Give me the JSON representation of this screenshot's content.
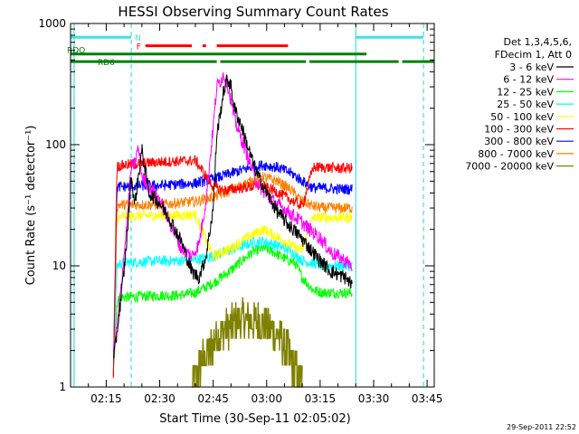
{
  "chart_data": {
    "type": "line",
    "title": "HESSI Observing Summary Count Rates",
    "xlabel": "Start Time (30-Sep-11 02:05:02)",
    "ylabel": "Count Rate (s⁻¹ detector⁻¹)",
    "x_scale": "time_minutes",
    "y_scale": "log",
    "xlim": [
      "02:05",
      "03:47"
    ],
    "ylim": [
      1,
      1000
    ],
    "x_ticks": [
      "02:15",
      "02:30",
      "02:45",
      "03:00",
      "03:15",
      "03:30",
      "03:45"
    ],
    "y_ticks": [
      "1",
      "10",
      "100",
      "1000"
    ],
    "grid": false,
    "legend_placement": "right",
    "legend_header": [
      "Det 1,3,4,5,6,",
      "FDecim 1, Att 0"
    ],
    "timestamp": "29-Sep-2011 22:52",
    "series": [
      {
        "name": "3 - 6 keV",
        "color": "#000000",
        "x": [
          "02:17",
          "02:18",
          "02:20",
          "02:21",
          "02:22",
          "02:23",
          "02:25",
          "02:27",
          "02:30",
          "02:33",
          "02:36",
          "02:39",
          "02:41",
          "02:43",
          "02:45",
          "02:46",
          "02:48",
          "02:49",
          "02:50",
          "02:51",
          "02:53",
          "02:55",
          "02:57",
          "03:00",
          "03:03",
          "03:06",
          "03:09",
          "03:12",
          "03:15",
          "03:18",
          "03:22",
          "03:24"
        ],
        "y": [
          1.6,
          2.8,
          9,
          20,
          55,
          32,
          90,
          40,
          33,
          24,
          16,
          9,
          8,
          12,
          30,
          120,
          280,
          350,
          300,
          200,
          140,
          90,
          60,
          40,
          28,
          22,
          18,
          14,
          11,
          9,
          8,
          7
        ]
      },
      {
        "name": "6 - 12 keV",
        "color": "#ff00ff",
        "x": [
          "02:17",
          "02:18",
          "02:20",
          "02:21",
          "02:22",
          "02:23",
          "02:24",
          "02:25",
          "02:27",
          "02:30",
          "02:33",
          "02:36",
          "02:39",
          "02:41",
          "02:43",
          "02:45",
          "02:46",
          "02:48",
          "02:49",
          "02:50",
          "02:51",
          "02:53",
          "02:55",
          "02:57",
          "03:00",
          "03:03",
          "03:06",
          "03:09",
          "03:12",
          "03:15",
          "03:18",
          "03:22",
          "03:24"
        ],
        "y": [
          2,
          3,
          12,
          26,
          65,
          70,
          95,
          55,
          45,
          35,
          22,
          14,
          12,
          15,
          35,
          140,
          300,
          380,
          320,
          230,
          160,
          110,
          75,
          50,
          38,
          32,
          28,
          24,
          20,
          17,
          13,
          11,
          10
        ]
      },
      {
        "name": "12 - 25 keV",
        "color": "#00ff00",
        "x": [
          "02:17",
          "02:18",
          "02:19",
          "02:20",
          "02:25",
          "02:30",
          "02:35",
          "02:40",
          "02:45",
          "02:50",
          "02:53",
          "02:56",
          "02:59",
          "03:02",
          "03:05",
          "03:08",
          "03:10",
          "03:13",
          "03:16",
          "03:20",
          "03:24"
        ],
        "y": [
          1.3,
          5,
          5.5,
          5.5,
          5.6,
          5.7,
          5.7,
          6,
          7.2,
          9.2,
          11,
          13,
          14,
          13,
          11.5,
          10.5,
          8,
          6.3,
          6,
          6,
          6
        ]
      },
      {
        "name": "25 - 50 keV",
        "color": "#00ffff",
        "x": [
          "02:17",
          "02:18",
          "02:19",
          "02:20",
          "02:25",
          "02:30",
          "02:35",
          "02:40",
          "02:45",
          "02:50",
          "02:53",
          "02:56",
          "02:59",
          "03:02",
          "03:05",
          "03:08",
          "03:10",
          "03:13",
          "03:16",
          "03:20",
          "03:24"
        ],
        "y": [
          1.3,
          10,
          10.5,
          10.6,
          10.8,
          11,
          11,
          11.2,
          12,
          13.5,
          14.5,
          15.5,
          16,
          15,
          14,
          12.5,
          11,
          10.5,
          10,
          10,
          10
        ]
      },
      {
        "name": "50 - 100 keV",
        "color": "#ffff00",
        "x": [
          "02:17",
          "02:18",
          "02:19",
          "02:20",
          "02:25",
          "02:30",
          "02:35",
          "02:40",
          "02:45",
          "02:50",
          "02:53",
          "02:56",
          "02:59",
          "03:02",
          "03:05",
          "03:08",
          "03:10",
          "03:13",
          "03:16",
          "03:20",
          "03:24"
        ],
        "y": [
          1.3,
          24,
          25,
          25.5,
          26,
          26,
          26,
          26.5,
          12,
          14,
          16,
          18,
          20,
          18,
          16,
          14,
          13.5,
          25,
          25,
          25,
          25
        ]
      },
      {
        "name": "100 - 300 keV",
        "color": "#ff0000",
        "x": [
          "02:17",
          "02:18",
          "02:19",
          "02:20",
          "02:25",
          "02:30",
          "02:35",
          "02:40",
          "02:45",
          "02:48",
          "02:53",
          "02:58",
          "03:02",
          "03:06",
          "03:10",
          "03:13",
          "03:16",
          "03:20",
          "03:24"
        ],
        "y": [
          1.3,
          66,
          67,
          68,
          70,
          72,
          73,
          74,
          45,
          42,
          44,
          46,
          42,
          36,
          31,
          65,
          65,
          64,
          64
        ]
      },
      {
        "name": "300 - 800 keV",
        "color": "#0000ff",
        "x": [
          "02:17",
          "02:18",
          "02:19",
          "02:20",
          "02:25",
          "02:30",
          "02:35",
          "02:40",
          "02:45",
          "02:50",
          "02:55",
          "02:59",
          "03:03",
          "03:07",
          "03:10",
          "03:13",
          "03:16",
          "03:20",
          "03:24"
        ],
        "y": [
          1.3,
          44,
          45,
          45,
          46,
          46,
          47,
          48,
          52,
          58,
          64,
          68,
          65,
          58,
          50,
          44,
          44,
          43,
          43
        ]
      },
      {
        "name": "800 - 7000 keV",
        "color": "#ff8000",
        "x": [
          "02:17",
          "02:18",
          "02:19",
          "02:20",
          "02:25",
          "02:30",
          "02:35",
          "02:40",
          "02:45",
          "02:50",
          "02:55",
          "02:59",
          "03:03",
          "03:07",
          "03:10",
          "03:13",
          "03:16",
          "03:20",
          "03:24"
        ],
        "y": [
          1.3,
          31,
          32,
          32,
          32,
          32,
          33,
          34,
          37,
          42,
          49,
          54,
          50,
          42,
          34,
          31,
          30,
          30,
          30
        ]
      },
      {
        "name": "7000 - 20000 keV",
        "color": "#808000",
        "x": [
          "02:39",
          "02:40",
          "02:42",
          "02:44",
          "02:46",
          "02:49",
          "02:52",
          "02:55",
          "02:58",
          "03:01",
          "03:04",
          "03:07",
          "03:09",
          "03:10"
        ],
        "y": [
          1,
          1.2,
          1.6,
          2,
          2.6,
          3,
          3.5,
          3.6,
          3.5,
          3,
          2.5,
          1.6,
          1.2,
          1
        ]
      }
    ],
    "flags": [
      {
        "label": "N",
        "color": "#40e0e0",
        "y": 770,
        "segments": [
          [
            "02:05",
            "02:22"
          ],
          [
            "03:25",
            "03:44"
          ]
        ]
      },
      {
        "label": "F",
        "color": "#ff0000",
        "y": 655,
        "segments": [
          [
            "02:26",
            "02:39"
          ],
          [
            "02:42",
            "02:43"
          ],
          [
            "02:46",
            "03:06"
          ]
        ]
      },
      {
        "label": "RDO",
        "color": "#008000",
        "y": 560,
        "segments": [
          [
            "02:05",
            "02:48"
          ],
          [
            "02:48",
            "03:25"
          ],
          [
            "03:25",
            "03:28"
          ]
        ]
      },
      {
        "label": "RD6",
        "color": "#008000",
        "y": 485,
        "segments": [
          [
            "02:05",
            "02:46"
          ],
          [
            "02:47",
            "03:11"
          ],
          [
            "03:12",
            "03:37"
          ],
          [
            "03:38",
            "03:47"
          ]
        ]
      }
    ],
    "vlines": [
      {
        "x": "02:06",
        "color": "#40e0e0",
        "style": "solid"
      },
      {
        "x": "02:22",
        "color": "#40e0e0",
        "style": "dashed"
      },
      {
        "x": "03:25",
        "color": "#40e0e0",
        "style": "solid"
      },
      {
        "x": "03:44",
        "color": "#40e0e0",
        "style": "dashed"
      }
    ]
  }
}
